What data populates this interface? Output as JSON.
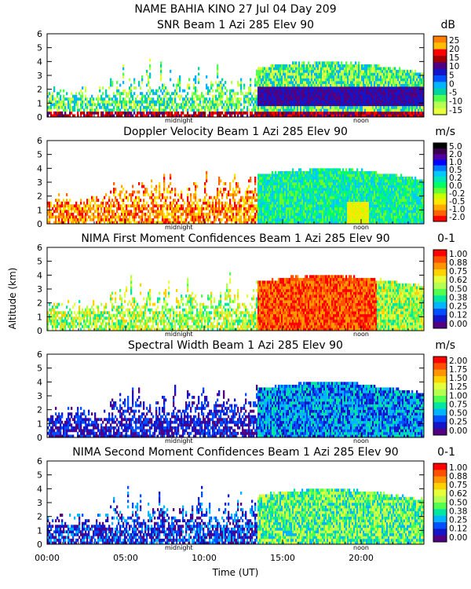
{
  "header": {
    "title": "NAME BAHIA KINO   27 Jul 04 Day 209"
  },
  "axes": {
    "xlabel": "Time (UT)",
    "ylabel": "Altitude (km)",
    "x_ticks": [
      "00:00",
      "05:00",
      "10:00",
      "15:00",
      "20:00"
    ],
    "y_ticks": [
      "0",
      "1",
      "2",
      "3",
      "4",
      "5",
      "6"
    ],
    "midnight_label": "midnight",
    "noon_label": "noon"
  },
  "chart_data": [
    {
      "type": "heatmap",
      "title": "SNR Beam 1 Azi 285 Elev 90",
      "unit": "dB",
      "xlim": [
        0,
        24
      ],
      "ylim": [
        0,
        6
      ],
      "colorbar_labels": [
        "25",
        "20",
        "15",
        "10",
        "5",
        "0",
        "-5",
        "-10",
        "-15"
      ],
      "colors": [
        "#ff7f00",
        "#ffbf00",
        "#ff0000",
        "#a00000",
        "#500080",
        "#1414c8",
        "#0050ff",
        "#00b4ff",
        "#00d2a0",
        "#50ff50",
        "#b4ff50",
        "#e6ff3c"
      ]
    },
    {
      "type": "heatmap",
      "title": "Doppler Velocity Beam 1 Azi 285 Elev 90",
      "unit": "m/s",
      "xlim": [
        0,
        24
      ],
      "ylim": [
        0,
        6
      ],
      "colorbar_labels": [
        "5.0",
        "2.0",
        "1.0",
        "0.5",
        "0.2",
        "0.0",
        "-0.2",
        "-0.5",
        "-1.0",
        "-2.0"
      ],
      "colors": [
        "#000000",
        "#3c0050",
        "#5000a0",
        "#0000ff",
        "#0078ff",
        "#00c8ff",
        "#00e6b4",
        "#00ff64",
        "#64ff32",
        "#c8ff00",
        "#ffe600",
        "#ffaa00",
        "#ff6400",
        "#ff0000"
      ]
    },
    {
      "type": "heatmap",
      "title": "NIMA First Moment Confidences Beam 1 Azi 285 Elev 90",
      "unit": "0-1",
      "xlim": [
        0,
        24
      ],
      "ylim": [
        0,
        6
      ],
      "colorbar_labels": [
        "1.00",
        "0.88",
        "0.75",
        "0.62",
        "0.50",
        "0.38",
        "0.25",
        "0.12",
        "0.00"
      ],
      "colors": [
        "#ff0000",
        "#ff5000",
        "#ff9600",
        "#ffd200",
        "#e6ff3c",
        "#b4ff50",
        "#50ff50",
        "#00e6a0",
        "#00b4ff",
        "#0050ff",
        "#1414c8",
        "#500080"
      ]
    },
    {
      "type": "heatmap",
      "title": "Spectral Width Beam 1 Azi 285 Elev 90",
      "unit": "m/s",
      "xlim": [
        0,
        24
      ],
      "ylim": [
        0,
        6
      ],
      "colorbar_labels": [
        "2.00",
        "1.75",
        "1.50",
        "1.25",
        "1.00",
        "0.75",
        "0.50",
        "0.25",
        "0.00"
      ],
      "colors": [
        "#ff0000",
        "#ff5000",
        "#ff9600",
        "#ffd200",
        "#e6ff3c",
        "#b4ff50",
        "#50ff50",
        "#00e6a0",
        "#00b4ff",
        "#0050ff",
        "#1414c8",
        "#500080"
      ]
    },
    {
      "type": "heatmap",
      "title": "NIMA Second Moment Confidences Beam 1 Azi 285 Elev 90",
      "unit": "0-1",
      "xlim": [
        0,
        24
      ],
      "ylim": [
        0,
        6
      ],
      "colorbar_labels": [
        "1.00",
        "0.88",
        "0.75",
        "0.62",
        "0.50",
        "0.38",
        "0.25",
        "0.12",
        "0.00"
      ],
      "colors": [
        "#ff0000",
        "#ff5000",
        "#ff9600",
        "#ffd200",
        "#e6ff3c",
        "#b4ff50",
        "#50ff50",
        "#00e6a0",
        "#00b4ff",
        "#0050ff",
        "#1414c8",
        "#500080"
      ]
    }
  ]
}
